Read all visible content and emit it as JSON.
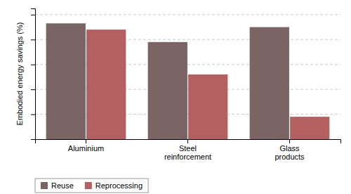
{
  "chart_data": {
    "type": "bar",
    "categories": [
      "Aluminium",
      "Steel\nreinforcement",
      "Glass\nproducts"
    ],
    "series": [
      {
        "name": "Reuse",
        "color": "#7a6464",
        "values": [
          93,
          78,
          90
        ]
      },
      {
        "name": "Reprocessing",
        "color": "#b56060",
        "values": [
          88,
          52,
          18
        ]
      }
    ],
    "ylabel": "Embodied energy savings (%)",
    "ylim": [
      0,
      105
    ],
    "yticks": [
      20,
      40,
      60,
      80,
      100
    ],
    "grid": true,
    "legend": "bottom",
    "tick_labels": "x"
  }
}
